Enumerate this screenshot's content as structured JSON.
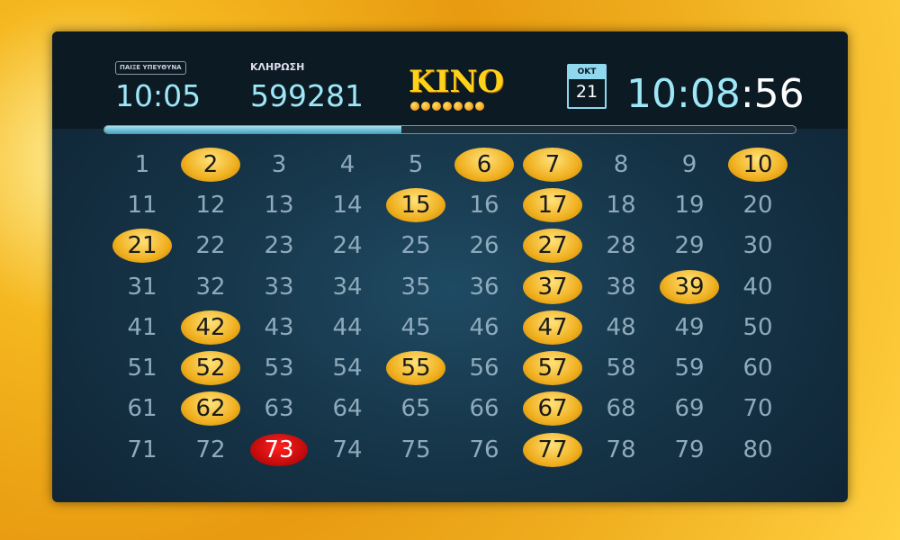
{
  "header": {
    "responsible_label": "ΠΑΙΞΕ ΥΠΕΥΘΥΝΑ",
    "draw_time": "10:05",
    "draw_label": "ΚΛΗΡΩΣΗ",
    "draw_number": "599281",
    "logo": "KINO",
    "calendar_month": "ΟΚΤ",
    "calendar_day": "21",
    "clock_hm": "10:08",
    "clock_s": ":56"
  },
  "progress_percent": 43,
  "numbers_range": [
    1,
    80
  ],
  "drawn_numbers": [
    2,
    6,
    7,
    10,
    15,
    17,
    21,
    27,
    37,
    39,
    42,
    47,
    52,
    55,
    57,
    62,
    67,
    73,
    77
  ],
  "last_drawn": 73,
  "colors": {
    "drawn": "#f0b020",
    "last": "#c00000",
    "undrawn": "#8eaabb",
    "accent": "#9de7f7"
  }
}
